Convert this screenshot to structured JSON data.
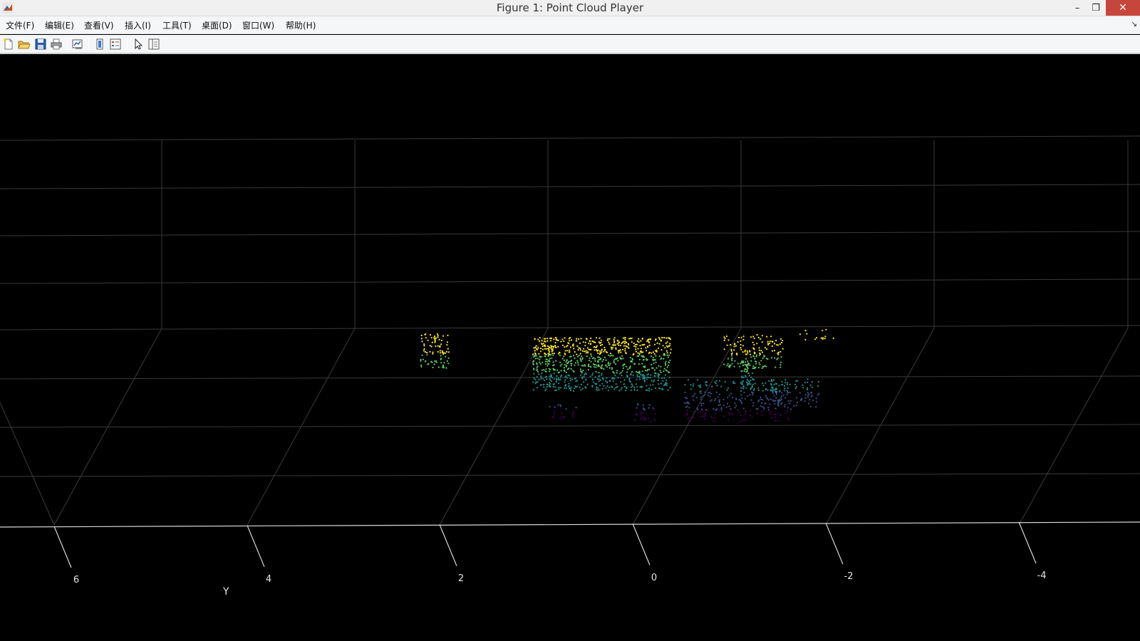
{
  "window": {
    "title": "Figure 1: Point Cloud Player",
    "minimize_glyph": "–",
    "maximize_glyph": "❐",
    "close_glyph": "✕"
  },
  "menu": {
    "items": [
      "文件(F)",
      "编辑(E)",
      "查看(V)",
      "插入(I)",
      "工具(T)",
      "桌面(D)",
      "窗口(W)",
      "帮助(H)"
    ],
    "overflow_glyph": "↘"
  },
  "toolbar": {
    "buttons": [
      "new-figure-icon",
      "open-file-icon",
      "save-icon",
      "print-icon",
      "link-plot-icon",
      "colorbar-icon",
      "legend-icon",
      "pointer-icon",
      "property-inspector-icon"
    ]
  },
  "plot": {
    "background": "#000000",
    "axis_label": "Y",
    "y_ticks": [
      "6",
      "4",
      "2",
      "0",
      "-2",
      "-4"
    ],
    "colormap": [
      "#440154",
      "#3b528b",
      "#21908d",
      "#5dc863",
      "#fde725"
    ]
  }
}
